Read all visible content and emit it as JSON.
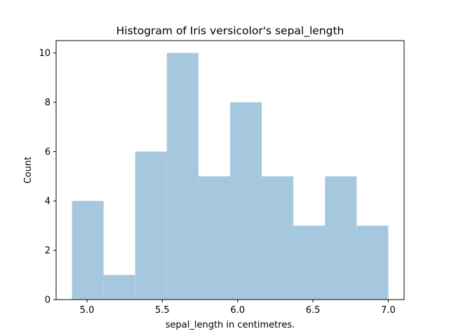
{
  "chart_data": {
    "type": "bar",
    "title": "Histogram of Iris versicolor's sepal_length",
    "xlabel": "sepal_length in centimetres.",
    "ylabel": "Count",
    "bin_edges": [
      4.9,
      5.11,
      5.32,
      5.53,
      5.74,
      5.95,
      6.16,
      6.37,
      6.58,
      6.79,
      7.0
    ],
    "values": [
      4,
      1,
      6,
      10,
      5,
      8,
      5,
      3,
      5,
      3
    ],
    "xlim": [
      4.795,
      7.105
    ],
    "ylim": [
      0,
      10.5
    ],
    "xticks": [
      5.0,
      5.5,
      6.0,
      6.5,
      7.0
    ],
    "xtick_labels": [
      "5.0",
      "5.5",
      "6.0",
      "6.5",
      "7.0"
    ],
    "yticks": [
      0,
      2,
      4,
      6,
      8,
      10
    ],
    "ytick_labels": [
      "0",
      "2",
      "4",
      "6",
      "8",
      "10"
    ],
    "bar_color": "#a6c8df",
    "grid": false,
    "legend": "none"
  }
}
